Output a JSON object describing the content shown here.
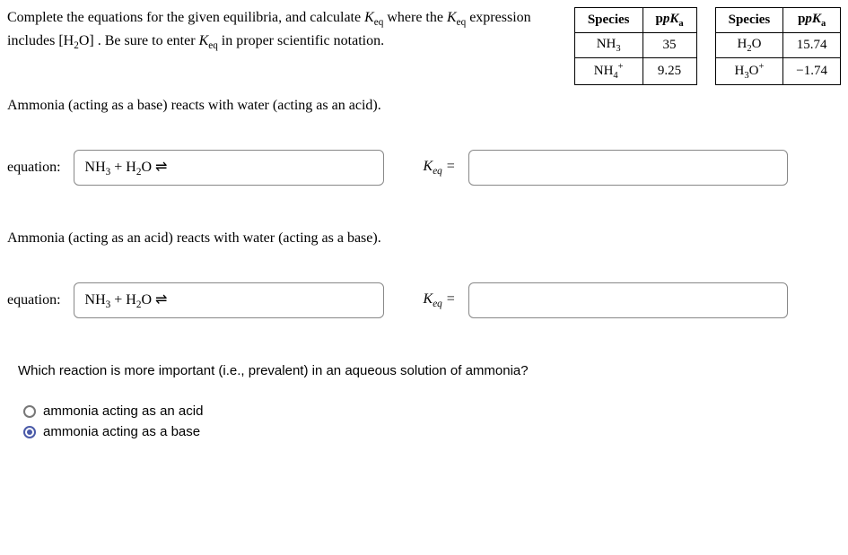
{
  "instructions": {
    "line1_pre": "Complete the equations for the given equilibria, and calculate ",
    "keq": "K",
    "keq_sub": "eq",
    "line1_post": " where ",
    "line2_pre": "the ",
    "line2_mid": " expression includes ",
    "h2o_bracket_open": "[",
    "h2o": "H",
    "h2o_sub": "2",
    "h2o_post": "O",
    "h2o_bracket_close": "]",
    "line2_post": " . Be sure to enter ",
    "line2_end": " in proper ",
    "line3": "scientific notation."
  },
  "table1": {
    "h1": "Species",
    "h2": "pK",
    "h2_sub": "a",
    "r1c1_a": "NH",
    "r1c1_sub": "3",
    "r1c2": "35",
    "r2c1_a": "NH",
    "r2c1_sub": "4",
    "r2c1_sup": "+",
    "r2c2": "9.25"
  },
  "table2": {
    "h1": "Species",
    "h2": "pK",
    "h2_sub": "a",
    "r1c1_a": "H",
    "r1c1_sub": "2",
    "r1c1_b": "O",
    "r1c2": "15.74",
    "r2c1_a": "H",
    "r2c1_sub": "3",
    "r2c1_b": "O",
    "r2c1_sup": "+",
    "r2c2": "−1.74"
  },
  "section1": "Ammonia (acting as a base) reacts with water (acting as an acid).",
  "section2": "Ammonia (acting as an acid) reacts with water (acting as a base).",
  "eq_label": "equation:",
  "eq1": {
    "nh": "NH",
    "nh_sub": "3",
    "plus": " + ",
    "h": "H",
    "h_sub": "2",
    "o": "O ",
    "arrow": "⇌"
  },
  "eq2": {
    "nh": "NH",
    "nh_sub": "3",
    "plus": " + ",
    "h": "H",
    "h_sub": "2",
    "o": "O ",
    "arrow": "⇌"
  },
  "keq_label": {
    "k": "K",
    "sub": "eq",
    "eq": " ="
  },
  "question": "Which reaction is more important (i.e., prevalent) in an aqueous solution of ammonia?",
  "options": {
    "opt1": "ammonia acting as an acid",
    "opt2": "ammonia acting as a base"
  }
}
